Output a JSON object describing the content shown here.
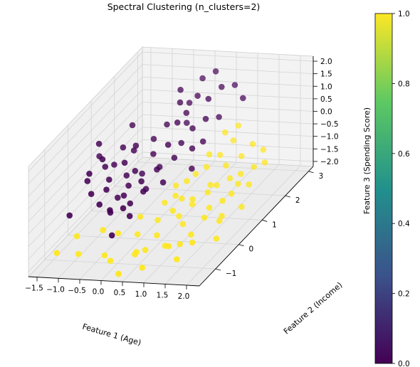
{
  "chart_data": {
    "type": "scatter3d",
    "title": "Spectral Clustering (n_clusters=2)",
    "xlabel": "Feature 1 (Age)",
    "ylabel": "Feature 2 (Income)",
    "zlabel": "Feature 3 (Spending Score)",
    "xlim": [
      -1.7,
      2.3
    ],
    "ylim": [
      -1.7,
      3.2
    ],
    "zlim": [
      -2.2,
      2.2
    ],
    "x_ticks": [
      "−1.5",
      "−1.0",
      "−0.5",
      "0.0",
      "0.5",
      "1.0",
      "1.5",
      "2.0"
    ],
    "y_ticks": [
      "−1",
      "0",
      "1",
      "2",
      "3"
    ],
    "z_ticks": [
      "−2.0",
      "−1.5",
      "−1.0",
      "−0.5",
      "0.0",
      "0.5",
      "1.0",
      "1.5",
      "2.0"
    ],
    "grid": true,
    "colormap": "viridis",
    "colorbar": {
      "range": [
        0.0,
        1.0
      ],
      "ticks": [
        "0.0",
        "0.2",
        "0.4",
        "0.6",
        "0.8",
        "1.0"
      ],
      "colors": [
        "#440154",
        "#3b528b",
        "#21918c",
        "#5ec962",
        "#fde725"
      ]
    },
    "cluster_colors": {
      "0": "#440154",
      "1": "#fde725"
    },
    "points": [
      {
        "x": -1.3,
        "y": 0.6,
        "z": 0.9,
        "cluster": 0
      },
      {
        "x": -1.0,
        "y": 0.2,
        "z": 0.7,
        "cluster": 0
      },
      {
        "x": -1.2,
        "y": 0.0,
        "z": 0.3,
        "cluster": 0
      },
      {
        "x": -1.1,
        "y": 0.5,
        "z": 0.1,
        "cluster": 0
      },
      {
        "x": -1.3,
        "y": 0.1,
        "z": -0.1,
        "cluster": 0
      },
      {
        "x": -1.0,
        "y": 0.7,
        "z": 0.0,
        "cluster": 0
      },
      {
        "x": -0.9,
        "y": 0.3,
        "z": -0.2,
        "cluster": 0
      },
      {
        "x": -0.7,
        "y": 0.6,
        "z": 0.2,
        "cluster": 0
      },
      {
        "x": -0.8,
        "y": 0.0,
        "z": -0.3,
        "cluster": 0
      },
      {
        "x": -0.6,
        "y": 0.9,
        "z": 0.6,
        "cluster": 0
      },
      {
        "x": -0.5,
        "y": 0.4,
        "z": -0.5,
        "cluster": 0
      },
      {
        "x": -0.7,
        "y": 1.0,
        "z": 0.3,
        "cluster": 0
      },
      {
        "x": -0.4,
        "y": 0.8,
        "z": -0.4,
        "cluster": 0
      },
      {
        "x": -0.5,
        "y": 0.2,
        "z": -0.7,
        "cluster": 0
      },
      {
        "x": -0.3,
        "y": 1.1,
        "z": 0.1,
        "cluster": 0
      },
      {
        "x": -0.2,
        "y": 0.6,
        "z": -0.8,
        "cluster": 0
      },
      {
        "x": -0.4,
        "y": 1.3,
        "z": 0.5,
        "cluster": 0
      },
      {
        "x": -0.6,
        "y": -0.2,
        "z": -1.0,
        "cluster": 0
      },
      {
        "x": -0.3,
        "y": 0.1,
        "z": -0.9,
        "cluster": 0
      },
      {
        "x": -0.1,
        "y": 1.0,
        "z": -0.3,
        "cluster": 0
      },
      {
        "x": -0.9,
        "y": 0.9,
        "z": 0.5,
        "cluster": 0
      },
      {
        "x": -0.8,
        "y": -0.3,
        "z": -0.6,
        "cluster": 0
      },
      {
        "x": -1.4,
        "y": 0.8,
        "z": 0.2,
        "cluster": 0
      },
      {
        "x": -0.6,
        "y": 0.5,
        "z": -0.2,
        "cluster": 0
      },
      {
        "x": -0.2,
        "y": -0.1,
        "z": -1.2,
        "cluster": 0
      },
      {
        "x": 0.2,
        "y": 1.6,
        "z": 1.3,
        "cluster": 0
      },
      {
        "x": 0.3,
        "y": 1.9,
        "z": 1.7,
        "cluster": 0
      },
      {
        "x": 0.0,
        "y": 1.7,
        "z": 1.6,
        "cluster": 0
      },
      {
        "x": 0.5,
        "y": 2.0,
        "z": 1.5,
        "cluster": 0
      },
      {
        "x": 0.1,
        "y": 1.4,
        "z": 1.1,
        "cluster": 0
      },
      {
        "x": 0.6,
        "y": 1.7,
        "z": 1.0,
        "cluster": 0
      },
      {
        "x": 0.4,
        "y": 1.5,
        "z": 0.8,
        "cluster": 0
      },
      {
        "x": -0.1,
        "y": 1.9,
        "z": 1.9,
        "cluster": 0
      },
      {
        "x": 0.7,
        "y": 2.2,
        "z": 1.8,
        "cluster": 0
      },
      {
        "x": 0.3,
        "y": 1.2,
        "z": 0.5,
        "cluster": 0
      },
      {
        "x": 0.8,
        "y": 1.9,
        "z": 0.9,
        "cluster": 0
      },
      {
        "x": 0.2,
        "y": 2.3,
        "z": 2.0,
        "cluster": 0
      },
      {
        "x": 0.9,
        "y": 2.4,
        "z": 1.7,
        "cluster": 0
      },
      {
        "x": -0.2,
        "y": 1.5,
        "z": 0.9,
        "cluster": 0
      },
      {
        "x": 0.5,
        "y": 1.3,
        "z": 0.2,
        "cluster": 0
      },
      {
        "x": 1.2,
        "y": 2.2,
        "z": 1.4,
        "cluster": 0
      },
      {
        "x": 0.4,
        "y": 2.5,
        "z": 2.1,
        "cluster": 0
      },
      {
        "x": 0.1,
        "y": 1.0,
        "z": 0.6,
        "cluster": 0
      },
      {
        "x": 0.6,
        "y": 1.1,
        "z": -0.4,
        "cluster": 0
      },
      {
        "x": -1.5,
        "y": -0.3,
        "z": -1.1,
        "cluster": 0
      },
      {
        "x": -0.4,
        "y": -0.5,
        "z": -1.6,
        "cluster": 0
      },
      {
        "x": -0.1,
        "y": 0.3,
        "z": -0.6,
        "cluster": 0
      },
      {
        "x": 0.0,
        "y": 0.7,
        "z": -0.1,
        "cluster": 0
      },
      {
        "x": -0.5,
        "y": -0.4,
        "z": -0.7,
        "cluster": 0
      },
      {
        "x": -0.9,
        "y": 1.3,
        "z": 1.0,
        "cluster": 0
      },
      {
        "x": 0.3,
        "y": 0.9,
        "z": 0.2,
        "cluster": 0
      },
      {
        "x": -1.1,
        "y": -0.1,
        "z": -0.4,
        "cluster": 0
      },
      {
        "x": -0.2,
        "y": 0.4,
        "z": -0.3,
        "cluster": 0
      },
      {
        "x": -0.3,
        "y": -0.2,
        "z": -0.8,
        "cluster": 0
      },
      {
        "x": 0.7,
        "y": 1.4,
        "z": 0.4,
        "cluster": 0
      },
      {
        "x": 0.0,
        "y": 2.1,
        "z": 1.2,
        "cluster": 0
      },
      {
        "x": -0.7,
        "y": 0.3,
        "z": -0.9,
        "cluster": 0
      },
      {
        "x": 0.1,
        "y": 1.8,
        "z": 0.7,
        "cluster": 0
      },
      {
        "x": -0.4,
        "y": 0.5,
        "z": 0.0,
        "cluster": 0
      },
      {
        "x": 0.2,
        "y": 0.6,
        "z": -0.5,
        "cluster": 0
      },
      {
        "x": 0.5,
        "y": 0.6,
        "z": -0.6,
        "cluster": 1
      },
      {
        "x": 0.8,
        "y": 0.9,
        "z": -0.4,
        "cluster": 1
      },
      {
        "x": 1.0,
        "y": 0.4,
        "z": -0.9,
        "cluster": 1
      },
      {
        "x": 0.7,
        "y": 0.1,
        "z": -1.1,
        "cluster": 1
      },
      {
        "x": 1.2,
        "y": 0.8,
        "z": -0.7,
        "cluster": 1
      },
      {
        "x": 1.4,
        "y": 1.1,
        "z": -0.2,
        "cluster": 1
      },
      {
        "x": 0.9,
        "y": 1.3,
        "z": 0.0,
        "cluster": 1
      },
      {
        "x": 1.6,
        "y": 0.9,
        "z": -0.5,
        "cluster": 1
      },
      {
        "x": 1.1,
        "y": -0.2,
        "z": -1.3,
        "cluster": 1
      },
      {
        "x": 1.8,
        "y": 0.6,
        "z": -0.8,
        "cluster": 1
      },
      {
        "x": 0.6,
        "y": -0.4,
        "z": -1.6,
        "cluster": 1
      },
      {
        "x": 1.5,
        "y": 0.2,
        "z": -1.0,
        "cluster": 1
      },
      {
        "x": 2.0,
        "y": 1.2,
        "z": -0.3,
        "cluster": 1
      },
      {
        "x": 1.3,
        "y": 1.6,
        "z": 0.3,
        "cluster": 1
      },
      {
        "x": 1.7,
        "y": 1.7,
        "z": 0.1,
        "cluster": 1
      },
      {
        "x": 0.4,
        "y": 0.0,
        "z": -1.4,
        "cluster": 1
      },
      {
        "x": 2.1,
        "y": 0.8,
        "z": -0.6,
        "cluster": 1
      },
      {
        "x": 1.0,
        "y": 1.0,
        "z": -0.2,
        "cluster": 1
      },
      {
        "x": 0.9,
        "y": -0.6,
        "z": -1.8,
        "cluster": 1
      },
      {
        "x": 1.4,
        "y": -0.4,
        "z": -1.5,
        "cluster": 1
      },
      {
        "x": 1.9,
        "y": -0.1,
        "z": -1.2,
        "cluster": 1
      },
      {
        "x": 2.2,
        "y": 0.3,
        "z": -1.0,
        "cluster": 1
      },
      {
        "x": 0.3,
        "y": -0.8,
        "z": -2.0,
        "cluster": 1
      },
      {
        "x": -0.3,
        "y": -1.0,
        "z": -1.9,
        "cluster": 1
      },
      {
        "x": -0.8,
        "y": -1.2,
        "z": -1.7,
        "cluster": 1
      },
      {
        "x": -1.2,
        "y": -1.4,
        "z": -1.5,
        "cluster": 1
      },
      {
        "x": 0.0,
        "y": -1.3,
        "z": -1.8,
        "cluster": 1
      },
      {
        "x": 0.5,
        "y": -1.1,
        "z": -1.6,
        "cluster": 1
      },
      {
        "x": 1.2,
        "y": -1.0,
        "z": -1.4,
        "cluster": 1
      },
      {
        "x": 1.7,
        "y": -0.9,
        "z": -1.3,
        "cluster": 1
      },
      {
        "x": 0.8,
        "y": -1.4,
        "z": -1.9,
        "cluster": 1
      },
      {
        "x": -0.5,
        "y": -0.7,
        "z": -1.2,
        "cluster": 1
      },
      {
        "x": 1.1,
        "y": 0.2,
        "z": -0.9,
        "cluster": 1
      },
      {
        "x": 1.6,
        "y": 1.4,
        "z": -0.1,
        "cluster": 1
      },
      {
        "x": 0.6,
        "y": 0.4,
        "z": -0.8,
        "cluster": 1
      },
      {
        "x": 2.0,
        "y": 1.6,
        "z": 0.0,
        "cluster": 1
      },
      {
        "x": 1.3,
        "y": 0.5,
        "z": -0.7,
        "cluster": 1
      },
      {
        "x": 0.2,
        "y": -0.5,
        "z": -1.5,
        "cluster": 1
      },
      {
        "x": 1.5,
        "y": -1.2,
        "z": -1.7,
        "cluster": 1
      },
      {
        "x": 1.9,
        "y": 0.0,
        "z": -1.1,
        "cluster": 1
      },
      {
        "x": 0.7,
        "y": 0.7,
        "z": -0.5,
        "cluster": 1
      },
      {
        "x": 1.0,
        "y": 1.8,
        "z": 0.4,
        "cluster": 1
      },
      {
        "x": 1.8,
        "y": 1.0,
        "z": -0.4,
        "cluster": 1
      },
      {
        "x": 0.4,
        "y": 0.3,
        "z": -1.0,
        "cluster": 1
      },
      {
        "x": 2.1,
        "y": -0.6,
        "z": -1.4,
        "cluster": 1
      },
      {
        "x": -1.0,
        "y": -0.9,
        "z": -1.3,
        "cluster": 1
      },
      {
        "x": 0.1,
        "y": -0.2,
        "z": -1.1,
        "cluster": 1
      },
      {
        "x": 1.4,
        "y": 0.7,
        "z": -0.6,
        "cluster": 1
      },
      {
        "x": 0.9,
        "y": 0.0,
        "z": -1.2,
        "cluster": 1
      },
      {
        "x": 1.6,
        "y": -0.2,
        "z": -1.0,
        "cluster": 1
      },
      {
        "x": 2.2,
        "y": 1.3,
        "z": -0.2,
        "cluster": 1
      },
      {
        "x": 1.1,
        "y": 1.4,
        "z": -0.1,
        "cluster": 1
      },
      {
        "x": 0.3,
        "y": -1.5,
        "z": -2.1,
        "cluster": 1
      },
      {
        "x": 1.7,
        "y": 0.4,
        "z": -0.9,
        "cluster": 1
      },
      {
        "x": 0.6,
        "y": -0.9,
        "z": -1.7,
        "cluster": 1
      },
      {
        "x": -0.2,
        "y": -0.6,
        "z": -1.4,
        "cluster": 1
      },
      {
        "x": 1.2,
        "y": 2.0,
        "z": 0.5,
        "cluster": 1
      },
      {
        "x": 0.8,
        "y": 0.3,
        "z": -0.8,
        "cluster": 1
      },
      {
        "x": 1.9,
        "y": 0.7,
        "z": -0.5,
        "cluster": 1
      },
      {
        "x": 1.3,
        "y": -0.7,
        "z": -1.6,
        "cluster": 1
      }
    ]
  }
}
